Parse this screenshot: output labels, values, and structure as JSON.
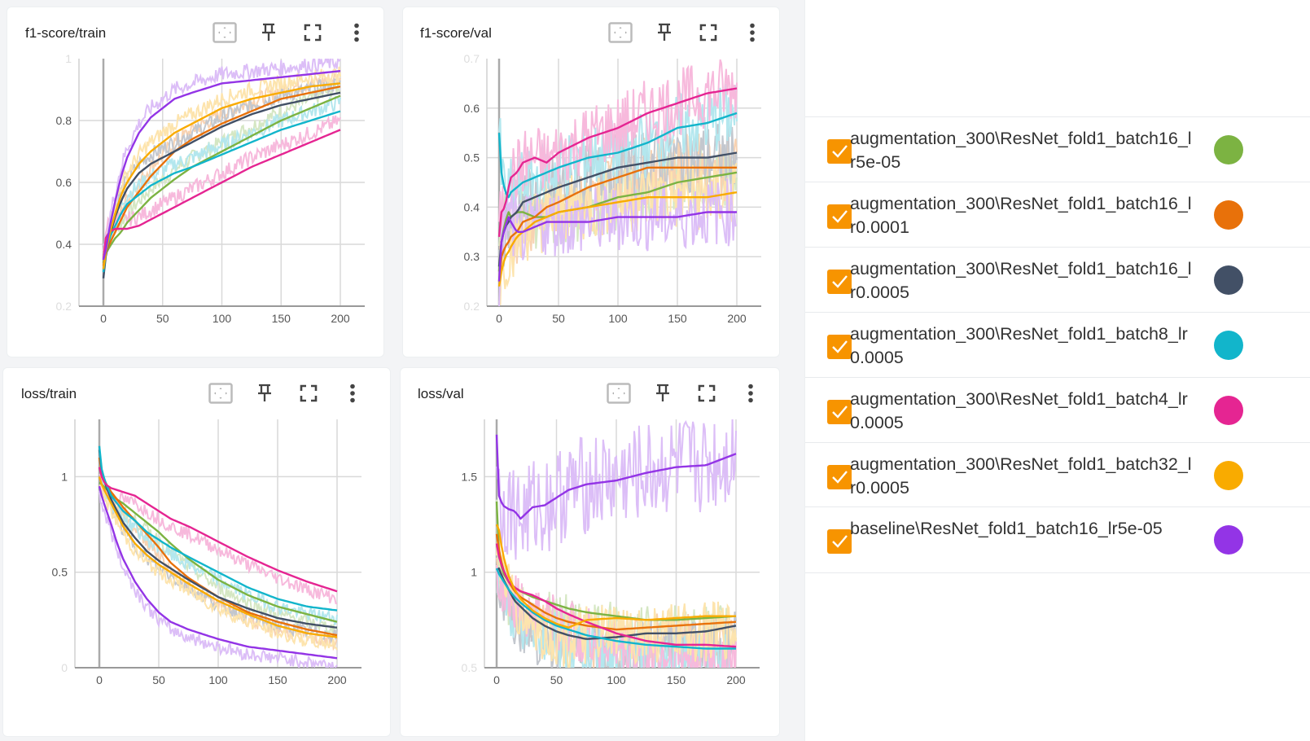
{
  "toolbar_icons": [
    "fit-domain-icon",
    "pin-icon",
    "fullscreen-icon",
    "more-vert-icon"
  ],
  "legend": {
    "runs": [
      {
        "label": "augmentation_300\\ResNet_fold1_batch16_lr5e-05",
        "color": "#7cb342",
        "checked": true
      },
      {
        "label": "augmentation_300\\ResNet_fold1_batch16_lr0.0001",
        "color": "#e8710a",
        "checked": true
      },
      {
        "label": "augmentation_300\\ResNet_fold1_batch16_lr0.0005",
        "color": "#425066",
        "checked": true
      },
      {
        "label": "augmentation_300\\ResNet_fold1_batch8_lr0.0005",
        "color": "#12b5cb",
        "checked": true
      },
      {
        "label": "augmentation_300\\ResNet_fold1_batch4_lr0.0005",
        "color": "#e52592",
        "checked": true
      },
      {
        "label": "augmentation_300\\ResNet_fold1_batch32_lr0.0005",
        "color": "#f9ab00",
        "checked": true
      },
      {
        "label": "baseline\\ResNet_fold1_batch16_lr5e-05",
        "color": "#9334e6",
        "checked": true
      }
    ],
    "checkbox_color": "#f79400"
  },
  "chart_data": [
    {
      "type": "line",
      "title": "f1-score/train",
      "xlabel": "",
      "ylabel": "",
      "xlim": [
        -20,
        220
      ],
      "ylim": [
        0.2,
        1.0
      ],
      "xticks": [
        0,
        50,
        100,
        150,
        200
      ],
      "yticks": [
        0.2,
        0.4,
        0.6,
        0.8,
        1.0
      ],
      "ytick_labels": [
        "0.2",
        "0.4",
        "0.6",
        "0.8",
        "1"
      ],
      "faint_yticks": [
        0.2,
        1.0
      ],
      "grid": true,
      "legend": "none",
      "x": [
        0,
        2,
        5,
        10,
        15,
        20,
        30,
        40,
        50,
        60,
        75,
        100,
        125,
        150,
        175,
        200
      ],
      "series": [
        {
          "name": "augmentation_300\\ResNet_fold1_batch16_lr5e-05",
          "values": [
            0.34,
            0.37,
            0.39,
            0.42,
            0.44,
            0.47,
            0.51,
            0.55,
            0.58,
            0.61,
            0.65,
            0.7,
            0.75,
            0.8,
            0.84,
            0.88
          ]
        },
        {
          "name": "augmentation_300\\ResNet_fold1_batch16_lr0.0001",
          "values": [
            0.33,
            0.37,
            0.4,
            0.44,
            0.48,
            0.52,
            0.57,
            0.62,
            0.66,
            0.7,
            0.74,
            0.79,
            0.83,
            0.87,
            0.89,
            0.91
          ]
        },
        {
          "name": "augmentation_300\\ResNet_fold1_batch16_lr0.0005",
          "values": [
            0.29,
            0.36,
            0.42,
            0.49,
            0.54,
            0.58,
            0.63,
            0.66,
            0.68,
            0.7,
            0.73,
            0.78,
            0.82,
            0.85,
            0.87,
            0.89
          ]
        },
        {
          "name": "augmentation_300\\ResNet_fold1_batch8_lr0.0005",
          "values": [
            0.31,
            0.37,
            0.42,
            0.46,
            0.5,
            0.53,
            0.56,
            0.59,
            0.61,
            0.63,
            0.65,
            0.69,
            0.73,
            0.77,
            0.8,
            0.83
          ]
        },
        {
          "name": "augmentation_300\\ResNet_fold1_batch4_lr0.0005",
          "values": [
            0.35,
            0.42,
            0.44,
            0.45,
            0.45,
            0.45,
            0.46,
            0.48,
            0.5,
            0.52,
            0.55,
            0.6,
            0.65,
            0.69,
            0.73,
            0.77
          ]
        },
        {
          "name": "augmentation_300\\ResNet_fold1_batch32_lr0.0005",
          "values": [
            0.32,
            0.37,
            0.43,
            0.5,
            0.56,
            0.6,
            0.66,
            0.7,
            0.73,
            0.76,
            0.79,
            0.84,
            0.87,
            0.89,
            0.91,
            0.92
          ]
        },
        {
          "name": "baseline\\ResNet_fold1_batch16_lr5e-05",
          "values": [
            0.35,
            0.38,
            0.45,
            0.54,
            0.62,
            0.68,
            0.76,
            0.81,
            0.84,
            0.87,
            0.89,
            0.92,
            0.93,
            0.94,
            0.95,
            0.96
          ]
        }
      ]
    },
    {
      "type": "line",
      "title": "f1-score/val",
      "xlabel": "",
      "ylabel": "",
      "xlim": [
        -20,
        220
      ],
      "ylim": [
        0.2,
        0.7
      ],
      "xticks": [
        0,
        50,
        100,
        150,
        200
      ],
      "yticks": [
        0.2,
        0.3,
        0.4,
        0.5,
        0.6,
        0.7
      ],
      "ytick_labels": [
        "0.2",
        "0.3",
        "0.4",
        "0.5",
        "0.6",
        "0.7"
      ],
      "faint_yticks": [
        0.2,
        0.7
      ],
      "grid": true,
      "legend": "none",
      "x": [
        0,
        2,
        5,
        8,
        10,
        15,
        20,
        30,
        40,
        50,
        75,
        100,
        125,
        150,
        175,
        200
      ],
      "series": [
        {
          "name": "augmentation_300\\ResNet_fold1_batch16_lr5e-05",
          "values": [
            0.27,
            0.33,
            0.37,
            0.39,
            0.38,
            0.39,
            0.39,
            0.38,
            0.38,
            0.39,
            0.4,
            0.42,
            0.43,
            0.45,
            0.46,
            0.47
          ]
        },
        {
          "name": "augmentation_300\\ResNet_fold1_batch16_lr0.0001",
          "values": [
            0.25,
            0.3,
            0.32,
            0.33,
            0.34,
            0.35,
            0.37,
            0.38,
            0.4,
            0.41,
            0.44,
            0.46,
            0.48,
            0.48,
            0.48,
            0.48
          ]
        },
        {
          "name": "augmentation_300\\ResNet_fold1_batch16_lr0.0005",
          "values": [
            0.28,
            0.33,
            0.36,
            0.37,
            0.38,
            0.39,
            0.41,
            0.42,
            0.43,
            0.44,
            0.46,
            0.48,
            0.49,
            0.5,
            0.5,
            0.51
          ]
        },
        {
          "name": "augmentation_300\\ResNet_fold1_batch8_lr0.0005",
          "values": [
            0.55,
            0.47,
            0.43,
            0.42,
            0.43,
            0.44,
            0.45,
            0.46,
            0.47,
            0.48,
            0.5,
            0.51,
            0.53,
            0.56,
            0.57,
            0.59
          ]
        },
        {
          "name": "augmentation_300\\ResNet_fold1_batch4_lr0.0005",
          "values": [
            0.34,
            0.39,
            0.4,
            0.44,
            0.46,
            0.47,
            0.49,
            0.5,
            0.49,
            0.51,
            0.54,
            0.56,
            0.59,
            0.61,
            0.63,
            0.64
          ]
        },
        {
          "name": "augmentation_300\\ResNet_fold1_batch32_lr0.0005",
          "values": [
            0.24,
            0.27,
            0.3,
            0.31,
            0.32,
            0.34,
            0.35,
            0.37,
            0.38,
            0.39,
            0.4,
            0.41,
            0.42,
            0.42,
            0.42,
            0.43
          ]
        },
        {
          "name": "baseline\\ResNet_fold1_batch16_lr5e-05",
          "values": [
            0.25,
            0.33,
            0.36,
            0.38,
            0.37,
            0.35,
            0.35,
            0.36,
            0.37,
            0.37,
            0.37,
            0.38,
            0.38,
            0.38,
            0.39,
            0.39
          ]
        }
      ]
    },
    {
      "type": "line",
      "title": "loss/train",
      "xlabel": "",
      "ylabel": "",
      "xlim": [
        -20,
        220
      ],
      "ylim": [
        0.0,
        1.3
      ],
      "xticks": [
        0,
        50,
        100,
        150,
        200
      ],
      "yticks": [
        0.0,
        0.5,
        1.0
      ],
      "ytick_labels": [
        "0",
        "0.5",
        "1"
      ],
      "faint_yticks": [
        0.0
      ],
      "grid": true,
      "legend": "none",
      "x": [
        0,
        2,
        5,
        10,
        15,
        20,
        30,
        40,
        50,
        60,
        75,
        100,
        125,
        150,
        175,
        200
      ],
      "series": [
        {
          "name": "augmentation_300\\ResNet_fold1_batch16_lr5e-05",
          "values": [
            0.97,
            0.96,
            0.94,
            0.91,
            0.88,
            0.86,
            0.81,
            0.76,
            0.71,
            0.65,
            0.57,
            0.46,
            0.38,
            0.32,
            0.28,
            0.24
          ]
        },
        {
          "name": "augmentation_300\\ResNet_fold1_batch16_lr0.0001",
          "values": [
            1.1,
            1.02,
            0.97,
            0.92,
            0.88,
            0.84,
            0.77,
            0.7,
            0.63,
            0.55,
            0.47,
            0.37,
            0.29,
            0.24,
            0.2,
            0.17
          ]
        },
        {
          "name": "augmentation_300\\ResNet_fold1_batch16_lr0.0005",
          "values": [
            1.14,
            1.03,
            0.96,
            0.88,
            0.82,
            0.76,
            0.68,
            0.61,
            0.56,
            0.52,
            0.46,
            0.37,
            0.31,
            0.26,
            0.23,
            0.21
          ]
        },
        {
          "name": "augmentation_300\\ResNet_fold1_batch8_lr0.0005",
          "values": [
            1.16,
            1.04,
            0.97,
            0.9,
            0.86,
            0.82,
            0.77,
            0.71,
            0.67,
            0.63,
            0.58,
            0.5,
            0.42,
            0.36,
            0.32,
            0.3
          ]
        },
        {
          "name": "augmentation_300\\ResNet_fold1_batch4_lr0.0005",
          "values": [
            1.05,
            1.0,
            0.96,
            0.94,
            0.93,
            0.92,
            0.9,
            0.86,
            0.82,
            0.78,
            0.74,
            0.66,
            0.58,
            0.51,
            0.45,
            0.4
          ]
        },
        {
          "name": "augmentation_300\\ResNet_fold1_batch32_lr0.0005",
          "values": [
            1.0,
            0.96,
            0.92,
            0.86,
            0.8,
            0.74,
            0.65,
            0.59,
            0.54,
            0.5,
            0.44,
            0.35,
            0.28,
            0.22,
            0.18,
            0.16
          ]
        },
        {
          "name": "baseline\\ResNet_fold1_batch16_lr5e-05",
          "values": [
            0.95,
            0.9,
            0.84,
            0.75,
            0.65,
            0.57,
            0.45,
            0.36,
            0.29,
            0.24,
            0.2,
            0.15,
            0.11,
            0.09,
            0.07,
            0.05
          ]
        }
      ]
    },
    {
      "type": "line",
      "title": "loss/val",
      "xlabel": "",
      "ylabel": "",
      "xlim": [
        -20,
        220
      ],
      "ylim": [
        0.5,
        1.8
      ],
      "xticks": [
        0,
        50,
        100,
        150,
        200
      ],
      "yticks": [
        0.5,
        1.0,
        1.5
      ],
      "ytick_labels": [
        "0.5",
        "1",
        "1.5"
      ],
      "faint_yticks": [
        0.5
      ],
      "grid": true,
      "legend": "none",
      "x": [
        0,
        2,
        5,
        10,
        15,
        20,
        30,
        40,
        50,
        60,
        75,
        100,
        125,
        150,
        175,
        200
      ],
      "series": [
        {
          "name": "augmentation_300\\ResNet_fold1_batch16_lr5e-05",
          "values": [
            1.37,
            1.1,
            1.0,
            0.95,
            0.92,
            0.9,
            0.87,
            0.85,
            0.83,
            0.81,
            0.79,
            0.77,
            0.75,
            0.75,
            0.76,
            0.77
          ]
        },
        {
          "name": "augmentation_300\\ResNet_fold1_batch16_lr0.0001",
          "values": [
            1.2,
            1.12,
            1.02,
            0.95,
            0.9,
            0.87,
            0.83,
            0.79,
            0.76,
            0.74,
            0.72,
            0.7,
            0.71,
            0.72,
            0.73,
            0.74
          ]
        },
        {
          "name": "augmentation_300\\ResNet_fold1_batch16_lr0.0005",
          "values": [
            1.01,
            1.02,
            0.97,
            0.91,
            0.85,
            0.82,
            0.76,
            0.72,
            0.69,
            0.67,
            0.65,
            0.66,
            0.68,
            0.68,
            0.69,
            0.72
          ]
        },
        {
          "name": "augmentation_300\\ResNet_fold1_batch8_lr0.0005",
          "values": [
            1.02,
            0.99,
            0.96,
            0.91,
            0.87,
            0.84,
            0.79,
            0.75,
            0.72,
            0.7,
            0.67,
            0.64,
            0.62,
            0.61,
            0.6,
            0.6
          ]
        },
        {
          "name": "augmentation_300\\ResNet_fold1_batch4_lr0.0005",
          "values": [
            1.15,
            1.08,
            1.02,
            0.95,
            0.92,
            0.9,
            0.88,
            0.85,
            0.81,
            0.78,
            0.74,
            0.68,
            0.64,
            0.62,
            0.62,
            0.61
          ]
        },
        {
          "name": "augmentation_300\\ResNet_fold1_batch32_lr0.0005",
          "values": [
            1.25,
            1.22,
            1.1,
            0.98,
            0.91,
            0.86,
            0.8,
            0.76,
            0.73,
            0.71,
            0.75,
            0.76,
            0.75,
            0.76,
            0.77,
            0.77
          ]
        },
        {
          "name": "baseline\\ResNet_fold1_batch16_lr5e-05",
          "values": [
            1.72,
            1.4,
            1.35,
            1.33,
            1.32,
            1.28,
            1.34,
            1.35,
            1.39,
            1.43,
            1.46,
            1.48,
            1.52,
            1.55,
            1.56,
            1.62
          ]
        }
      ]
    }
  ]
}
